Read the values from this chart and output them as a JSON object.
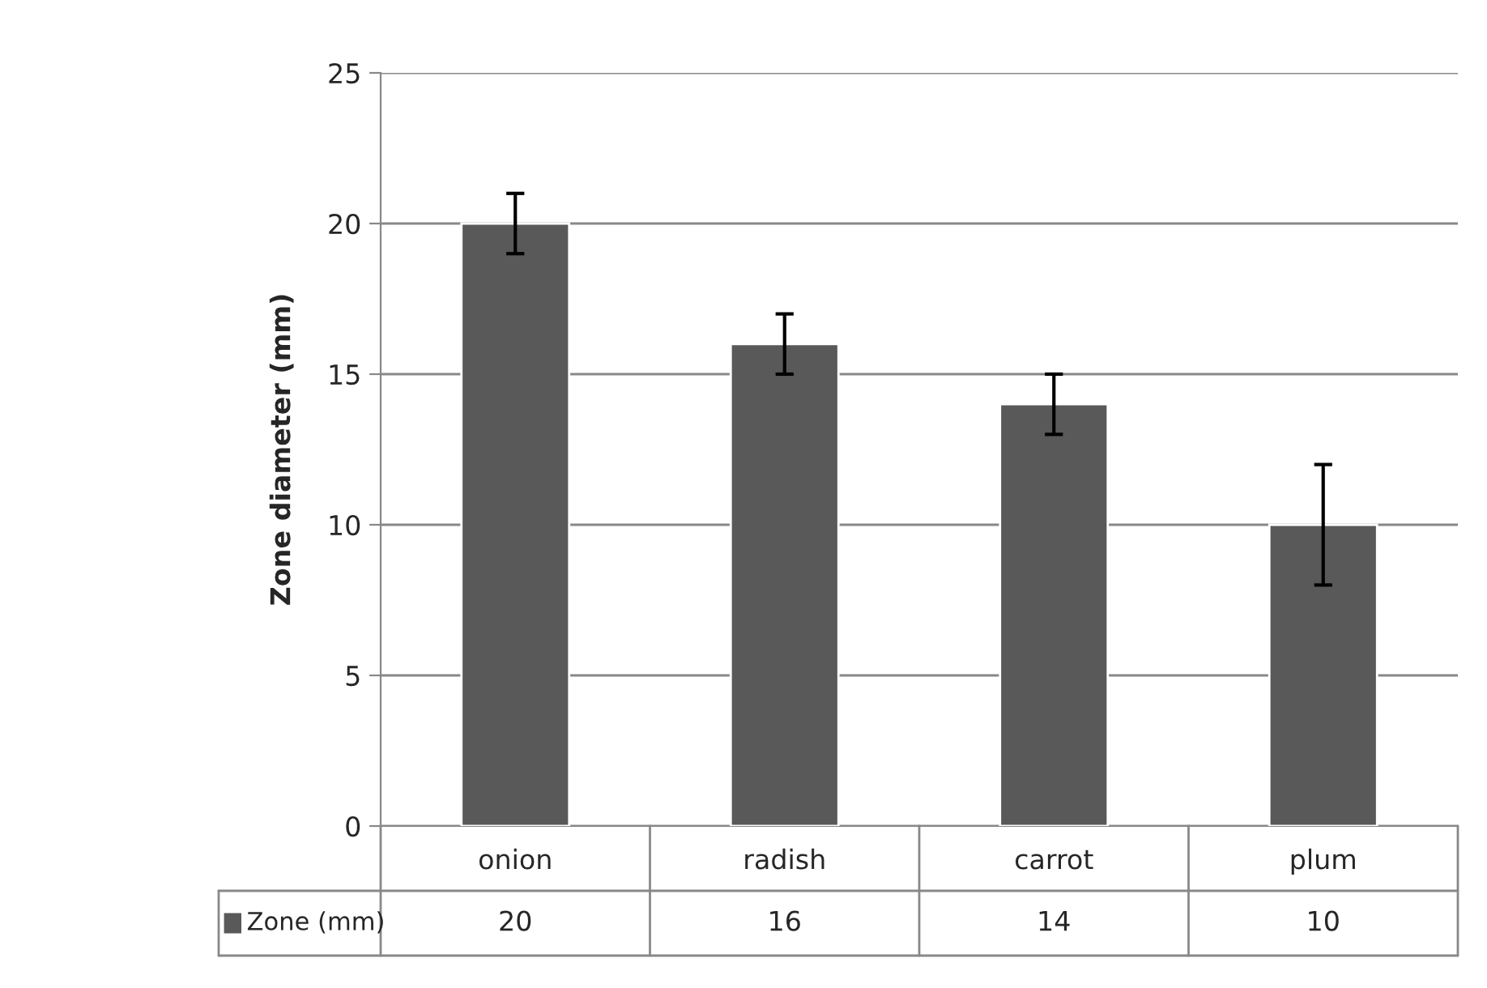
{
  "chart_data": {
    "type": "bar",
    "ylabel": "Zone diameter (mm)",
    "categories": [
      "onion",
      "radish",
      "carrot",
      "plum"
    ],
    "series": [
      {
        "name": "Zone (mm)",
        "color": "#595959",
        "values": [
          20,
          16,
          14,
          10
        ],
        "errors": [
          1,
          1,
          1,
          2
        ]
      }
    ],
    "ylim": [
      0,
      25
    ],
    "yticks": [
      0,
      5,
      10,
      15,
      20,
      25
    ],
    "grid": "y",
    "data_labels": true,
    "legend": "bottom"
  }
}
